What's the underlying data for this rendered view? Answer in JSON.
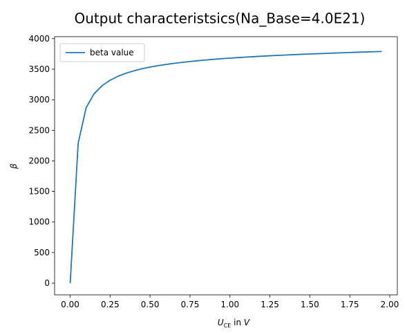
{
  "chart_data": {
    "type": "line",
    "title": "Output characteristsics(Na_Base=4.0E21)",
    "xlabel": {
      "var": "U",
      "sub": "CE",
      "unit_prefix": " in ",
      "unit": "V"
    },
    "ylabel": "β",
    "xlim": [
      -0.0975,
      2.0475
    ],
    "ylim": [
      -192,
      4032
    ],
    "xticks": [
      0.0,
      0.25,
      0.5,
      0.75,
      1.0,
      1.25,
      1.5,
      1.75,
      2.0
    ],
    "xtick_labels": [
      "0.00",
      "0.25",
      "0.50",
      "0.75",
      "1.00",
      "1.25",
      "1.50",
      "1.75",
      "2.00"
    ],
    "yticks": [
      0,
      500,
      1000,
      1500,
      2000,
      2500,
      3000,
      3500,
      4000
    ],
    "ytick_labels": [
      "0",
      "500",
      "1000",
      "1500",
      "2000",
      "2500",
      "3000",
      "3500",
      "4000"
    ],
    "grid": false,
    "legend": "top-left",
    "colors": {
      "series": "#1f77b4",
      "axes": "#000000",
      "background": "#ffffff"
    },
    "series": [
      {
        "name": "beta value",
        "x": [
          0.0,
          0.05,
          0.1,
          0.15,
          0.2,
          0.25,
          0.3,
          0.35,
          0.4,
          0.45,
          0.5,
          0.55,
          0.6,
          0.65,
          0.7,
          0.75,
          0.8,
          0.85,
          0.9,
          0.95,
          1.0,
          1.05,
          1.1,
          1.15,
          1.2,
          1.25,
          1.3,
          1.35,
          1.4,
          1.45,
          1.5,
          1.55,
          1.6,
          1.65,
          1.7,
          1.75,
          1.8,
          1.85,
          1.9,
          1.95
        ],
        "values": [
          0,
          2290,
          2870,
          3100,
          3230,
          3320,
          3385,
          3435,
          3475,
          3508,
          3535,
          3558,
          3578,
          3596,
          3612,
          3626,
          3639,
          3651,
          3662,
          3672,
          3681,
          3690,
          3698,
          3706,
          3713,
          3720,
          3726,
          3732,
          3738,
          3744,
          3749,
          3754,
          3759,
          3764,
          3769,
          3773,
          3778,
          3782,
          3786,
          3790
        ]
      }
    ]
  }
}
